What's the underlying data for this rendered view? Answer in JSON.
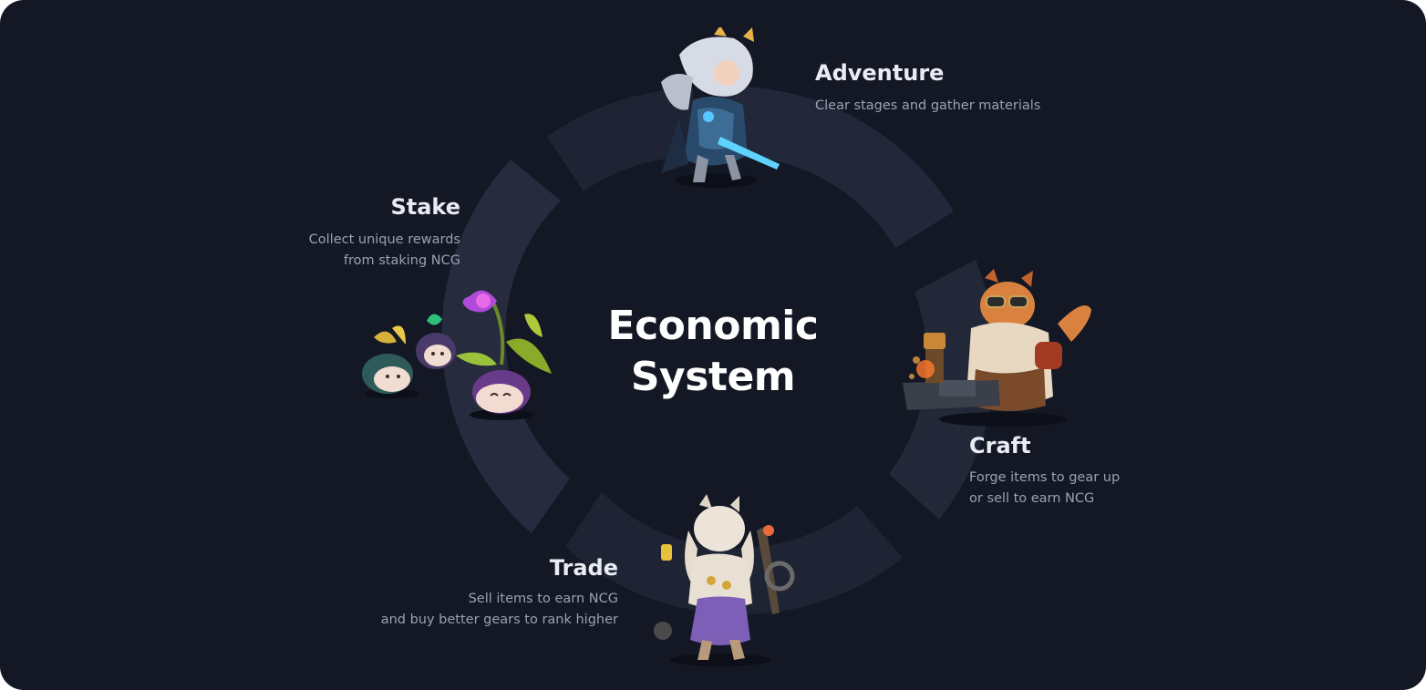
{
  "diagram": {
    "title_line1": "Economic",
    "title_line2": "System",
    "nodes": {
      "adventure": {
        "title": "Adventure",
        "desc": [
          "Clear stages and gather materials"
        ],
        "art": "knight-character-icon"
      },
      "craft": {
        "title": "Craft",
        "desc": [
          "Forge items to gear up",
          "or sell to earn NCG"
        ],
        "art": "blacksmith-cat-character-icon"
      },
      "trade": {
        "title": "Trade",
        "desc": [
          "Sell items to earn NCG",
          "and buy better gears to rank higher"
        ],
        "art": "merchant-cat-character-icon"
      },
      "stake": {
        "title": "Stake",
        "desc": [
          "Collect unique rewards",
          "from staking NCG"
        ],
        "art": "plant-creatures-icon"
      }
    },
    "colors": {
      "background": "#141825",
      "ring": "#22273a",
      "title": "#ffffff",
      "label": "#e9ecf3",
      "description": "#9ba1b3"
    }
  }
}
